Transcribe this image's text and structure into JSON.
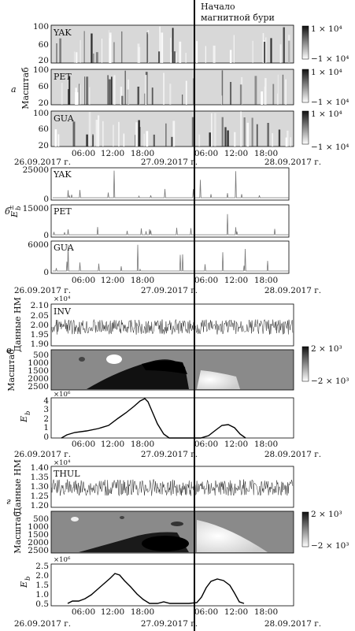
{
  "storm_annotation": [
    "Начало",
    "магнитной бури"
  ],
  "panel_letters": [
    "а",
    "б",
    "в",
    "г"
  ],
  "dates": [
    "26.09.2017 г.",
    "27.09.2017 г.",
    "28.09.2017 г."
  ],
  "time_ticks": [
    "06:00",
    "12:00",
    "18:00",
    "06:00",
    "12:00",
    "18:00"
  ],
  "ylabels": {
    "scale": "Масштаб",
    "energy": "E",
    "energy_sub": "b",
    "energy_sup": "±",
    "nm_data": "Данные НМ",
    "eb": "E",
    "eb_sub": "b"
  },
  "group_a": {
    "stations": [
      "YAK",
      "PET",
      "GUA"
    ],
    "yticks": [
      "100",
      "60",
      "20"
    ],
    "colorbar": [
      "1 × 10⁴",
      "−1 × 10⁴"
    ]
  },
  "group_b": {
    "stations": [
      "YAK",
      "PET",
      "GUA"
    ],
    "yticks": [
      [
        "25000",
        "0"
      ],
      [
        "15000",
        "0"
      ],
      [
        "6000",
        "0"
      ]
    ]
  },
  "group_v": {
    "station": "INV",
    "exponent": "×10⁴",
    "yticks": [
      "2.10",
      "2.05",
      "2.00",
      "1.95",
      "1.90"
    ],
    "scale_yticks": [
      "500",
      "1000",
      "1500",
      "2000",
      "2500"
    ],
    "colorbar": [
      "2 × 10³",
      "−2 × 10³"
    ],
    "eb_exponent": "×10⁶",
    "eb_yticks": [
      "4",
      "3",
      "2",
      "1",
      "0"
    ]
  },
  "group_g": {
    "station": "THUL",
    "exponent": "×10⁴",
    "yticks": [
      "1.40",
      "1.35",
      "1.30",
      "1.25",
      "1.20"
    ],
    "scale_yticks": [
      "500",
      "1000",
      "1500",
      "2000",
      "2500"
    ],
    "colorbar": [
      "2 × 10³",
      "−2 × 10³"
    ],
    "eb_exponent": "×10⁶",
    "eb_yticks": [
      "2.5",
      "2.0",
      "1.5",
      "1.0",
      "0.5"
    ]
  }
}
